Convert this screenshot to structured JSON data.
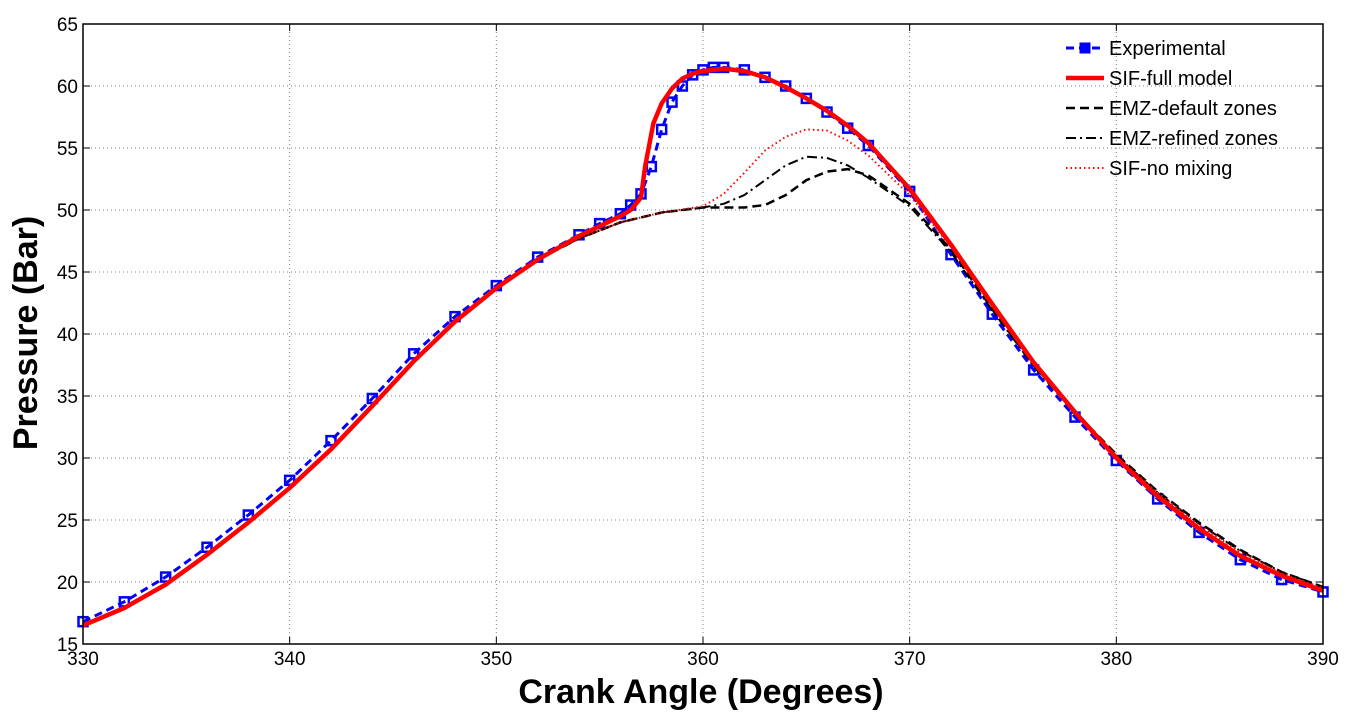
{
  "chart_data": {
    "type": "line",
    "xlabel": "Crank Angle (Degrees)",
    "ylabel": "Pressure (Bar)",
    "xlim": [
      330,
      390
    ],
    "ylim": [
      15,
      65
    ],
    "xticks": [
      330,
      340,
      350,
      360,
      370,
      380,
      390
    ],
    "yticks": [
      15,
      20,
      25,
      30,
      35,
      40,
      45,
      50,
      55,
      60,
      65
    ],
    "xtick_labels": [
      "330",
      "340",
      "350",
      "360",
      "370",
      "380",
      "390"
    ],
    "ytick_labels": [
      "15",
      "20",
      "25",
      "30",
      "35",
      "40",
      "45",
      "50",
      "55",
      "60",
      "65"
    ],
    "grid": true,
    "legend_position": "top-right",
    "series": [
      {
        "name": "Experimental",
        "color": "#0000ff",
        "style": "dashed-square-markers",
        "x": [
          330,
          332,
          334,
          336,
          338,
          340,
          342,
          344,
          346,
          348,
          350,
          352,
          354,
          355,
          356,
          356.5,
          357,
          357.5,
          358,
          358.5,
          359,
          359.5,
          360,
          360.5,
          361,
          362,
          363,
          364,
          365,
          366,
          367,
          368,
          370,
          372,
          374,
          376,
          378,
          380,
          382,
          384,
          386,
          388,
          390
        ],
        "y": [
          16.8,
          18.4,
          20.4,
          22.8,
          25.4,
          28.2,
          31.4,
          34.8,
          38.4,
          41.4,
          43.9,
          46.2,
          48.0,
          48.9,
          49.7,
          50.4,
          51.3,
          53.5,
          56.5,
          58.7,
          60.0,
          60.9,
          61.3,
          61.5,
          61.5,
          61.3,
          60.7,
          60.0,
          59.0,
          57.9,
          56.6,
          55.2,
          51.5,
          46.4,
          41.6,
          37.1,
          33.3,
          29.8,
          26.7,
          24.0,
          21.8,
          20.2,
          19.2
        ]
      },
      {
        "name": "SIF-full model",
        "color": "#ff0000",
        "style": "solid-thick",
        "x": [
          330,
          332,
          334,
          336,
          338,
          340,
          342,
          344,
          346,
          348,
          350,
          352,
          354,
          355,
          356,
          356.5,
          357,
          357.2,
          357.6,
          358,
          358.5,
          359,
          359.5,
          360,
          361,
          362,
          363,
          364,
          365,
          366,
          367,
          368,
          370,
          372,
          374,
          376,
          378,
          380,
          382,
          384,
          386,
          388,
          390
        ],
        "y": [
          16.5,
          17.9,
          19.8,
          22.2,
          24.8,
          27.6,
          30.7,
          34.2,
          37.8,
          41.0,
          43.7,
          46.0,
          47.9,
          48.7,
          49.5,
          50.0,
          51.0,
          53.5,
          57.0,
          58.6,
          59.8,
          60.6,
          61.0,
          61.2,
          61.4,
          61.2,
          60.7,
          59.9,
          59.0,
          58.0,
          56.8,
          55.4,
          51.7,
          47.2,
          42.4,
          37.7,
          33.7,
          30.0,
          26.9,
          24.3,
          22.1,
          20.5,
          19.3
        ]
      },
      {
        "name": "EMZ-default zones",
        "color": "#000000",
        "style": "dashed",
        "x": [
          330,
          332,
          334,
          336,
          338,
          340,
          342,
          344,
          346,
          348,
          350,
          352,
          354,
          356,
          358,
          360,
          362,
          363,
          364,
          365,
          366,
          367,
          368,
          370,
          372,
          374,
          376,
          378,
          380,
          382,
          384,
          386,
          388,
          390
        ],
        "y": [
          16.5,
          17.9,
          19.8,
          22.2,
          24.8,
          27.6,
          30.7,
          34.2,
          37.8,
          41.0,
          43.7,
          46.0,
          47.7,
          49.0,
          49.8,
          50.2,
          50.2,
          50.4,
          51.2,
          52.4,
          53.1,
          53.3,
          52.8,
          50.5,
          46.8,
          42.0,
          37.5,
          33.7,
          30.3,
          27.3,
          24.8,
          22.6,
          20.8,
          19.6
        ]
      },
      {
        "name": "EMZ-refined zones",
        "color": "#000000",
        "style": "dash-dot",
        "x": [
          330,
          332,
          334,
          336,
          338,
          340,
          342,
          344,
          346,
          348,
          350,
          352,
          354,
          356,
          358,
          360,
          361,
          362,
          363,
          364,
          365,
          366,
          367,
          368,
          370,
          372,
          374,
          376,
          378,
          380,
          382,
          384,
          386,
          388,
          390
        ],
        "y": [
          16.5,
          17.9,
          19.8,
          22.2,
          24.8,
          27.6,
          30.7,
          34.2,
          37.8,
          41.0,
          43.7,
          46.0,
          47.7,
          49.0,
          49.8,
          50.2,
          50.5,
          51.2,
          52.4,
          53.6,
          54.3,
          54.2,
          53.6,
          52.6,
          50.3,
          46.6,
          41.9,
          37.4,
          33.6,
          30.2,
          27.2,
          24.7,
          22.5,
          20.8,
          19.6
        ]
      },
      {
        "name": "SIF-no mixing",
        "color": "#ff0000",
        "style": "dotted",
        "x": [
          330,
          332,
          334,
          336,
          338,
          340,
          342,
          344,
          346,
          348,
          350,
          352,
          354,
          356,
          358,
          360,
          361,
          362,
          363,
          364,
          365,
          366,
          367,
          368,
          370,
          372,
          374,
          376,
          378,
          380,
          382,
          384,
          386,
          388,
          390
        ],
        "y": [
          16.5,
          17.9,
          19.8,
          22.2,
          24.8,
          27.6,
          30.7,
          34.2,
          37.8,
          41.0,
          43.7,
          46.0,
          47.7,
          49.0,
          49.8,
          50.3,
          51.3,
          53.0,
          54.8,
          55.9,
          56.5,
          56.4,
          55.6,
          54.4,
          51.2,
          47.0,
          42.2,
          37.6,
          33.7,
          30.2,
          27.2,
          24.6,
          22.4,
          20.7,
          19.5
        ]
      }
    ]
  }
}
